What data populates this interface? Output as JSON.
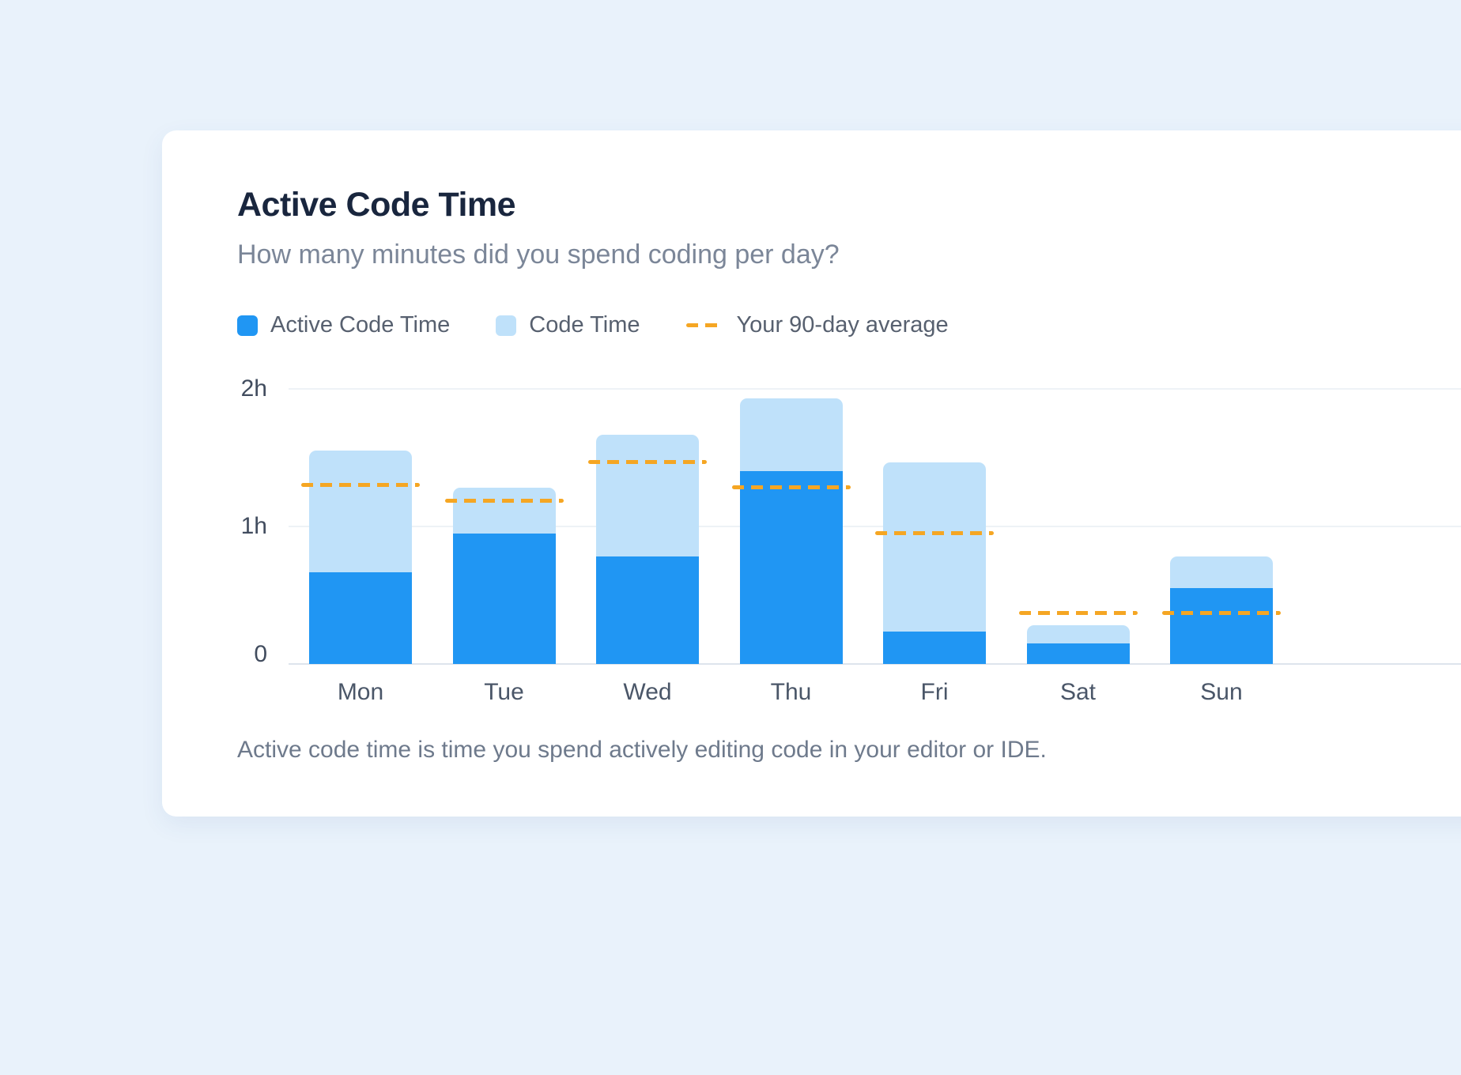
{
  "header": {
    "title": "Active Code Time",
    "subtitle": "How many minutes did you spend coding per day?"
  },
  "footer": {
    "note": "Active code time is time you spend actively editing code in your editor or IDE."
  },
  "colors": {
    "background": "#e9f2fb",
    "card": "#ffffff",
    "active_blue": "#2096f3",
    "code_light_blue": "#bfe1fa",
    "average_orange": "#f5a623"
  },
  "chart_data": {
    "type": "bar",
    "stacked": true,
    "title": "Active Code Time",
    "categories": [
      "Mon",
      "Tue",
      "Wed",
      "Thu",
      "Fri",
      "Sat",
      "Sun"
    ],
    "unit": "minutes",
    "series": [
      {
        "name": "Active Code Time",
        "color": "#2096f3",
        "values_min": [
          40,
          57,
          47,
          84,
          14,
          9,
          33
        ]
      },
      {
        "name": "Code Time",
        "color": "#bfe1fa",
        "values_min": [
          93,
          77,
          100,
          116,
          88,
          17,
          47
        ]
      }
    ],
    "average_line": {
      "name": "Your 90-day average",
      "color": "#f5a623",
      "style": "dashed",
      "values_min": [
        78,
        71,
        88,
        77,
        57,
        22,
        22
      ]
    },
    "y_ticks": [
      {
        "label": "2h",
        "hours": 2
      },
      {
        "label": "1h",
        "hours": 1
      },
      {
        "label": "0",
        "hours": 0
      }
    ],
    "ylim_hours": [
      0,
      2.2
    ],
    "legend_position": "top",
    "grid": true
  }
}
